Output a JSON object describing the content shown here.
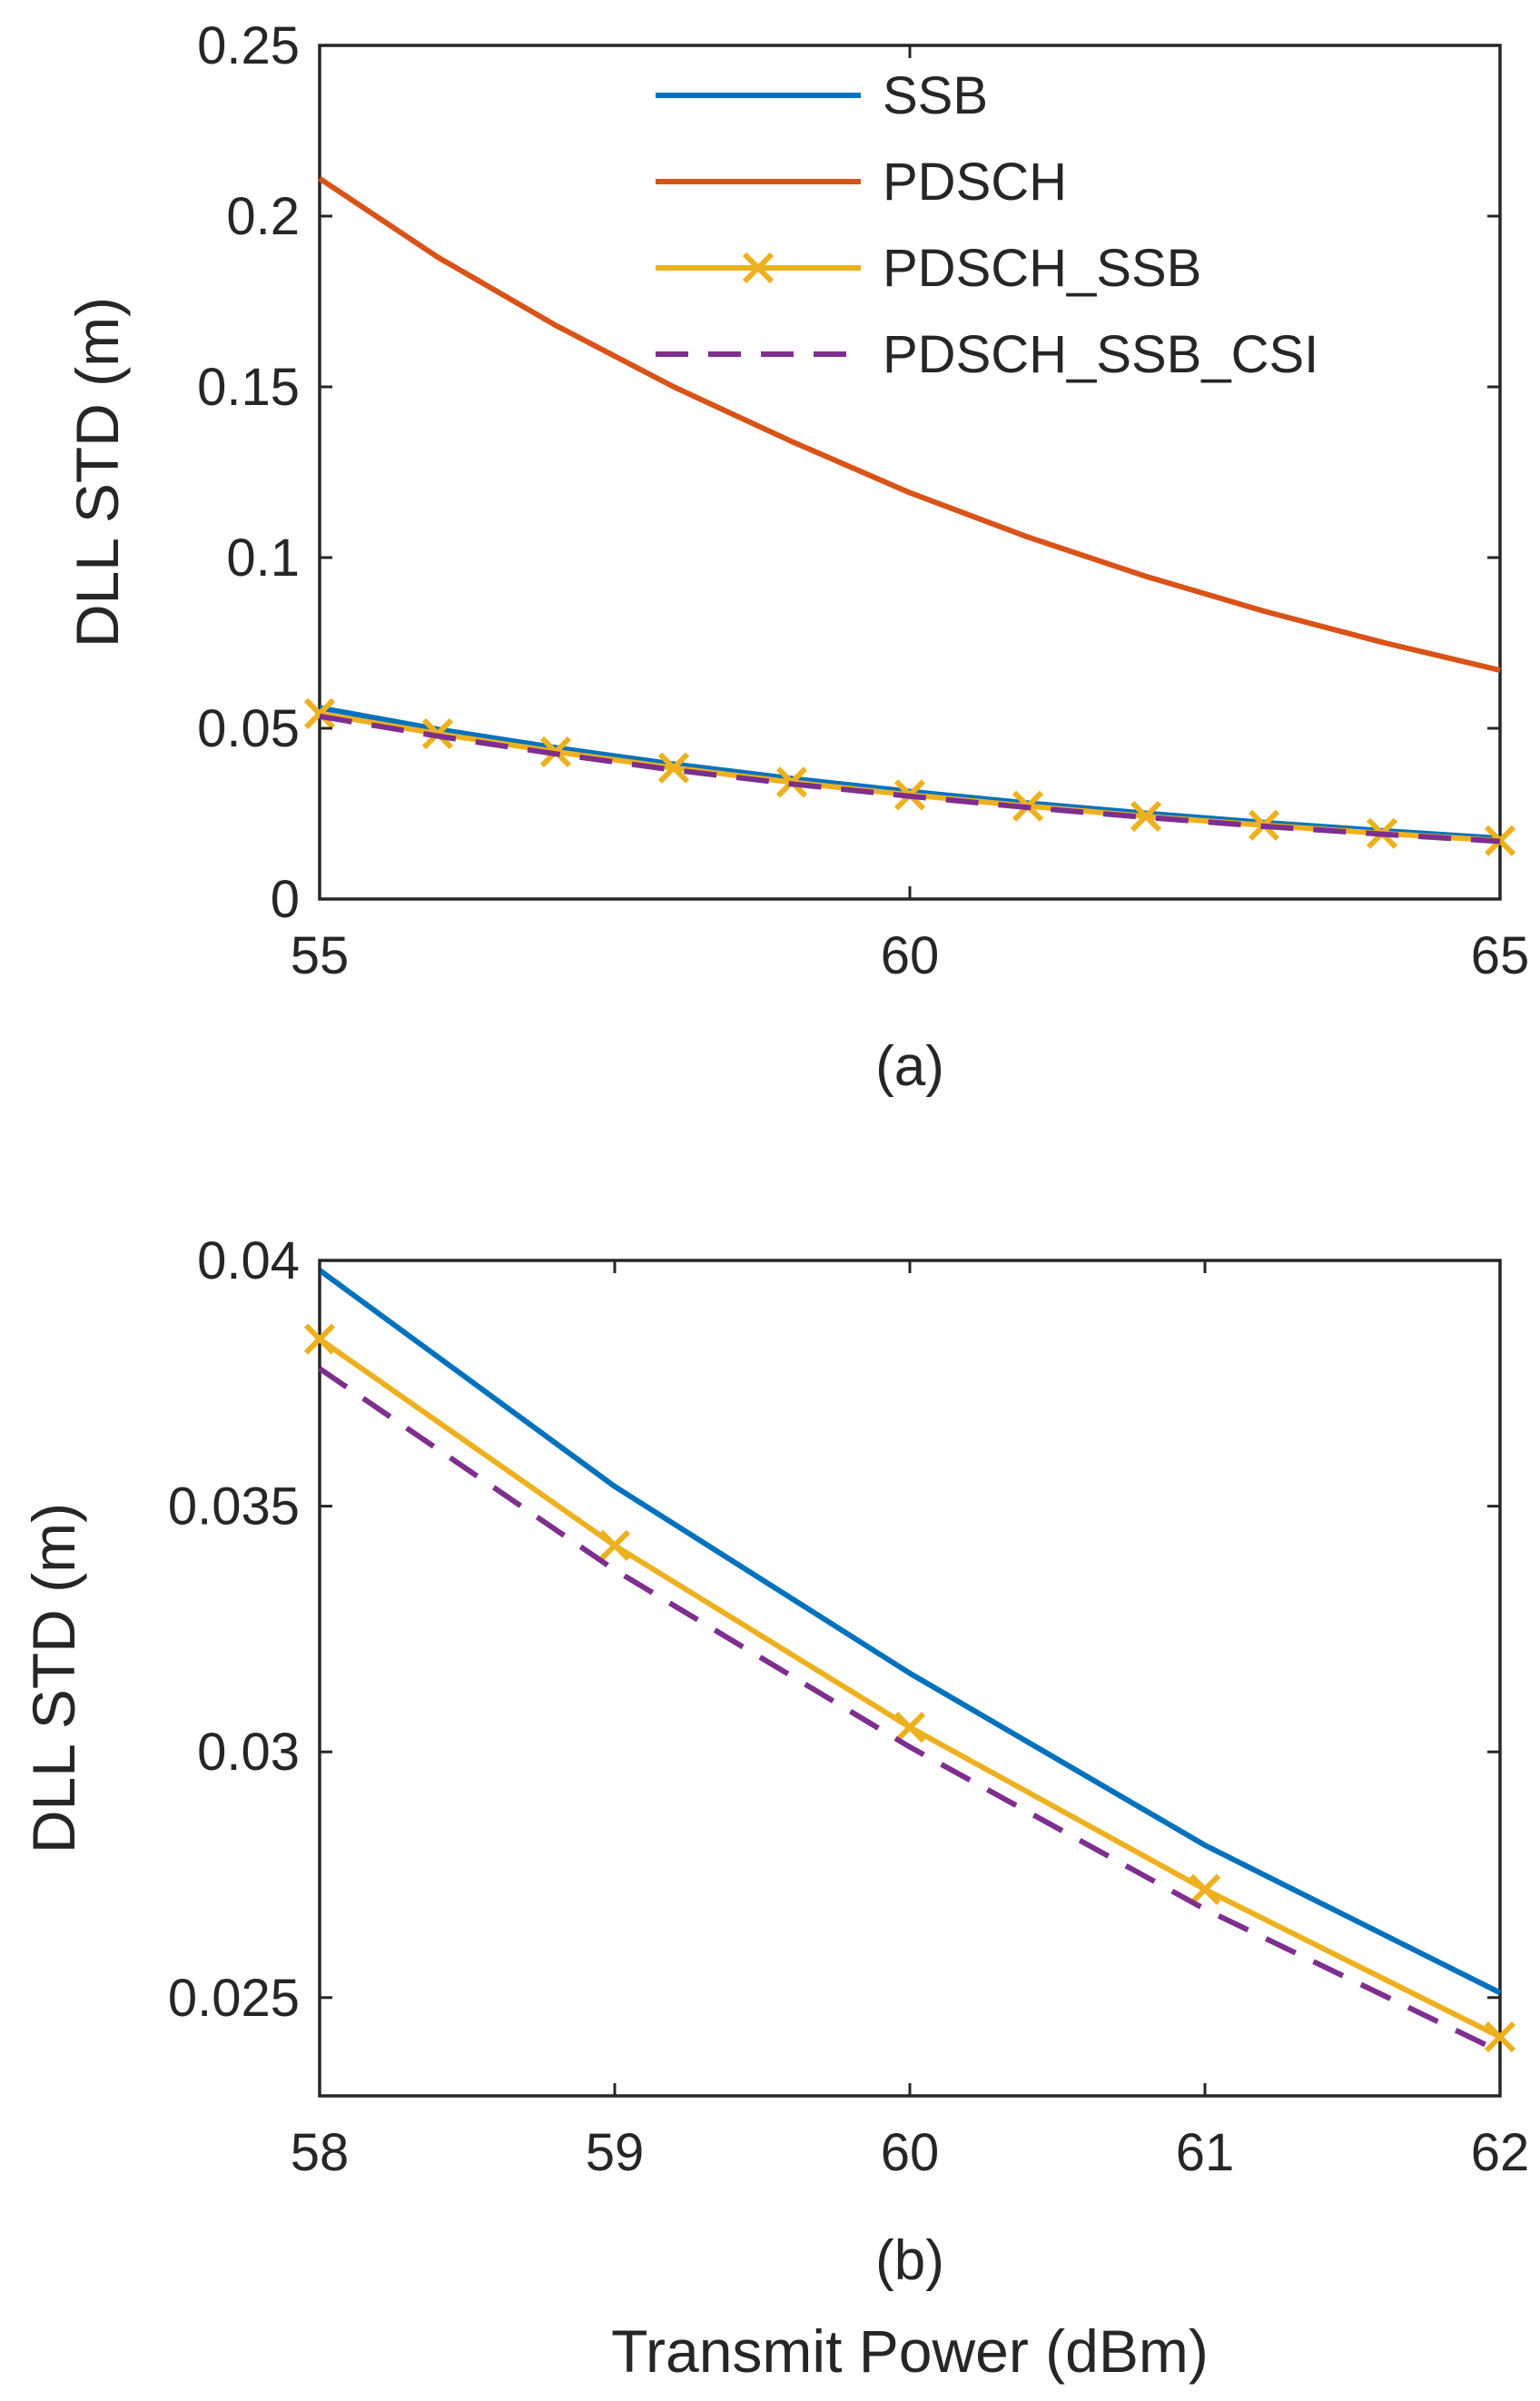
{
  "chart_data": [
    {
      "id": "a",
      "type": "line",
      "title": "",
      "xlabel": "",
      "subplot_label": "(a)",
      "ylabel": "DLL STD (m)",
      "xlim": [
        55,
        65
      ],
      "ylim": [
        0,
        0.25
      ],
      "xticks": [
        55,
        60,
        65
      ],
      "xtick_labels": [
        "55",
        "60",
        "65"
      ],
      "yticks": [
        0,
        0.05,
        0.1,
        0.15,
        0.2,
        0.25
      ],
      "ytick_labels": [
        "0",
        "0.05",
        "0.1",
        "0.15",
        "0.2",
        "0.25"
      ],
      "legend": {
        "position": "top-right",
        "entries": [
          "SSB",
          "PDSCH",
          "PDSCH_SSB",
          "PDSCH_SSB_CSI"
        ]
      },
      "x": [
        55,
        56,
        57,
        58,
        59,
        60,
        61,
        62,
        63,
        64,
        65
      ],
      "series": [
        {
          "name": "SSB",
          "color": "#0072BD",
          "style": "solid",
          "marker": "none",
          "values": [
            0.056,
            0.0497,
            0.0443,
            0.0395,
            0.0353,
            0.0315,
            0.0281,
            0.0251,
            0.0224,
            0.02,
            0.0178
          ]
        },
        {
          "name": "PDSCH",
          "color": "#D95319",
          "style": "solid",
          "marker": "none",
          "values": [
            0.211,
            0.188,
            0.168,
            0.15,
            0.134,
            0.119,
            0.106,
            0.0945,
            0.0843,
            0.0752,
            0.067
          ]
        },
        {
          "name": "PDSCH_SSB",
          "color": "#EDB120",
          "style": "solid",
          "marker": "x",
          "values": [
            0.0543,
            0.0484,
            0.0431,
            0.0384,
            0.0342,
            0.0305,
            0.0272,
            0.0242,
            0.0216,
            0.0192,
            0.0171
          ]
        },
        {
          "name": "PDSCH_SSB_CSI",
          "color": "#7E2F8E",
          "style": "dashed",
          "marker": "none",
          "values": [
            0.0535,
            0.0477,
            0.0425,
            0.0378,
            0.0337,
            0.0301,
            0.0268,
            0.0239,
            0.0213,
            0.019,
            0.0169
          ]
        }
      ]
    },
    {
      "id": "b",
      "type": "line",
      "title": "",
      "xlabel": "Transmit Power (dBm)",
      "subplot_label": "(b)",
      "ylabel": "DLL STD (m)",
      "xlim": [
        58,
        62
      ],
      "ylim": [
        0.023,
        0.04
      ],
      "xticks": [
        58,
        59,
        60,
        61,
        62
      ],
      "xtick_labels": [
        "58",
        "59",
        "60",
        "61",
        "62"
      ],
      "yticks": [
        0.025,
        0.03,
        0.035,
        0.04
      ],
      "ytick_labels": [
        "0.025",
        "0.03",
        "0.035",
        "0.04"
      ],
      "x": [
        58,
        59,
        60,
        61,
        62
      ],
      "series": [
        {
          "name": "SSB",
          "color": "#0072BD",
          "style": "solid",
          "marker": "none",
          "values": [
            0.0398,
            0.0354,
            0.0316,
            0.0281,
            0.0251
          ]
        },
        {
          "name": "PDSCH_SSB",
          "color": "#EDB120",
          "style": "solid",
          "marker": "x",
          "values": [
            0.0384,
            0.0342,
            0.0305,
            0.0272,
            0.0242
          ]
        },
        {
          "name": "PDSCH_SSB_CSI",
          "color": "#7E2F8E",
          "style": "dashed",
          "marker": "none",
          "values": [
            0.0378,
            0.0337,
            0.0301,
            0.0268,
            0.0239
          ]
        }
      ]
    }
  ]
}
